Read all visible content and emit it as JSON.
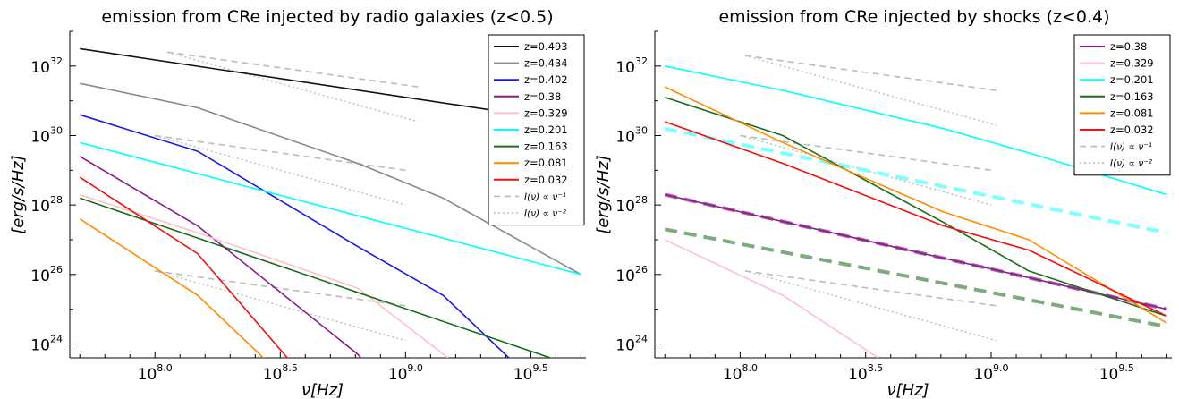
{
  "chart_data": [
    {
      "type": "line",
      "title": "emission from CRe injected by radio galaxies (z<0.5)",
      "xlabel": "ν[Hz]",
      "ylabel": "[erg/s/Hz]",
      "xscale": "log",
      "yscale": "log",
      "xlim_log10": [
        7.66,
        9.72
      ],
      "ylim_log10": [
        23.6,
        33.0
      ],
      "xticks": [
        {
          "log10": 8.0,
          "base": "10",
          "exp": "8.0"
        },
        {
          "log10": 8.5,
          "base": "10",
          "exp": "8.5"
        },
        {
          "log10": 9.0,
          "base": "10",
          "exp": "9.0"
        },
        {
          "log10": 9.5,
          "base": "10",
          "exp": "9.5"
        }
      ],
      "yticks": [
        {
          "log10": 24,
          "base": "10",
          "exp": "24"
        },
        {
          "log10": 26,
          "base": "10",
          "exp": "26"
        },
        {
          "log10": 28,
          "base": "10",
          "exp": "28"
        },
        {
          "log10": 30,
          "base": "10",
          "exp": "30"
        },
        {
          "log10": 32,
          "base": "10",
          "exp": "32"
        }
      ],
      "legend_position": "top-right",
      "series": [
        {
          "name": "z=0.493",
          "color": "#111111",
          "style": "solid",
          "points": [
            [
              7.7,
              32.5
            ],
            [
              9.56,
              30.5
            ]
          ]
        },
        {
          "name": "z=0.434",
          "color": "#888888",
          "style": "solid",
          "points": [
            [
              7.7,
              31.5
            ],
            [
              8.17,
              30.8
            ],
            [
              8.81,
              29.2
            ],
            [
              9.15,
              28.2
            ],
            [
              9.7,
              26.0
            ]
          ]
        },
        {
          "name": "z=0.402",
          "color": "#1a1ae6",
          "style": "solid",
          "points": [
            [
              7.7,
              30.6
            ],
            [
              8.17,
              29.55
            ],
            [
              8.81,
              26.8
            ],
            [
              9.15,
              25.4
            ],
            [
              9.5,
              23.0
            ]
          ]
        },
        {
          "name": "z=0.38",
          "color": "#8b1a8b",
          "style": "solid",
          "points": [
            [
              7.7,
              29.4
            ],
            [
              8.17,
              27.4
            ],
            [
              8.81,
              23.7
            ],
            [
              8.95,
              22.5
            ]
          ]
        },
        {
          "name": "z=0.329",
          "color": "#ffc0cb",
          "style": "solid",
          "points": [
            [
              7.7,
              28.3
            ],
            [
              8.17,
              27.2
            ],
            [
              8.81,
              25.6
            ],
            [
              9.17,
              23.6
            ]
          ]
        },
        {
          "name": "z=0.201",
          "color": "#00ffff",
          "style": "solid",
          "points": [
            [
              7.7,
              29.8
            ],
            [
              9.7,
              26.0
            ]
          ]
        },
        {
          "name": "z=0.163",
          "color": "#1b6b1b",
          "style": "solid",
          "points": [
            [
              7.7,
              28.2
            ],
            [
              9.7,
              23.3
            ]
          ]
        },
        {
          "name": "z=0.081",
          "color": "#ff8c00",
          "style": "solid",
          "points": [
            [
              7.7,
              27.6
            ],
            [
              8.17,
              25.4
            ],
            [
              8.55,
              22.8
            ]
          ]
        },
        {
          "name": "z=0.032",
          "color": "#ee1111",
          "style": "solid",
          "points": [
            [
              7.7,
              28.8
            ],
            [
              8.17,
              26.6
            ],
            [
              8.6,
              23.0
            ]
          ]
        }
      ],
      "reference_lines": [
        {
          "name": "I(ν) ∝ ν^-1",
          "color": "#bbbbbb",
          "style": "dashed",
          "points": [
            [
              8.05,
              32.4
            ],
            [
              9.05,
              31.4
            ]
          ]
        },
        {
          "name": "I(ν) ∝ ν^-2",
          "color": "#bbbbbb",
          "style": "dotted",
          "points": [
            [
              8.05,
              32.4
            ],
            [
              9.05,
              30.4
            ]
          ]
        },
        {
          "name": "I(ν) ∝ ν^-1",
          "color": "#bbbbbb",
          "style": "dashed",
          "points": [
            [
              8.0,
              30.0
            ],
            [
              9.0,
              29.0
            ]
          ]
        },
        {
          "name": "I(ν) ∝ ν^-2",
          "color": "#bbbbbb",
          "style": "dotted",
          "points": [
            [
              8.0,
              30.0
            ],
            [
              9.0,
              28.0
            ]
          ]
        },
        {
          "name": "I(ν) ∝ ν^-1",
          "color": "#bbbbbb",
          "style": "dashed",
          "points": [
            [
              8.0,
              26.1
            ],
            [
              9.0,
              25.1
            ]
          ]
        },
        {
          "name": "I(ν) ∝ ν^-2",
          "color": "#bbbbbb",
          "style": "dotted",
          "points": [
            [
              8.0,
              26.1
            ],
            [
              9.0,
              24.1
            ]
          ]
        }
      ],
      "legend": [
        {
          "label": "z=0.493",
          "color": "#111111",
          "style": "solid",
          "math": false
        },
        {
          "label": "z=0.434",
          "color": "#888888",
          "style": "solid",
          "math": false
        },
        {
          "label": "z=0.402",
          "color": "#1a1ae6",
          "style": "solid",
          "math": false
        },
        {
          "label": "z=0.38",
          "color": "#8b1a8b",
          "style": "solid",
          "math": false
        },
        {
          "label": "z=0.329",
          "color": "#ffc0cb",
          "style": "solid",
          "math": false
        },
        {
          "label": "z=0.201",
          "color": "#00ffff",
          "style": "solid",
          "math": false
        },
        {
          "label": "z=0.163",
          "color": "#1b6b1b",
          "style": "solid",
          "math": false
        },
        {
          "label": "z=0.081",
          "color": "#ff8c00",
          "style": "solid",
          "math": false
        },
        {
          "label": "z=0.032",
          "color": "#ee1111",
          "style": "solid",
          "math": false
        },
        {
          "label": "I(ν) ∝ ν⁻¹",
          "color": "#bbbbbb",
          "style": "dashed",
          "math": true
        },
        {
          "label": "I(ν) ∝ ν⁻²",
          "color": "#bbbbbb",
          "style": "dotted",
          "math": true
        }
      ]
    },
    {
      "type": "line",
      "title": "emission from CRe injected by shocks (z<0.4)",
      "xlabel": "ν[Hz]",
      "ylabel": "[erg/s/Hz]",
      "xscale": "log",
      "yscale": "log",
      "xlim_log10": [
        7.66,
        9.72
      ],
      "ylim_log10": [
        23.6,
        33.0
      ],
      "xticks": [
        {
          "log10": 8.0,
          "base": "10",
          "exp": "8.0"
        },
        {
          "log10": 8.5,
          "base": "10",
          "exp": "8.5"
        },
        {
          "log10": 9.0,
          "base": "10",
          "exp": "9.0"
        },
        {
          "log10": 9.5,
          "base": "10",
          "exp": "9.5"
        }
      ],
      "yticks": [
        {
          "log10": 24,
          "base": "10",
          "exp": "24"
        },
        {
          "log10": 26,
          "base": "10",
          "exp": "26"
        },
        {
          "log10": 28,
          "base": "10",
          "exp": "28"
        },
        {
          "log10": 30,
          "base": "10",
          "exp": "30"
        },
        {
          "log10": 32,
          "base": "10",
          "exp": "32"
        }
      ],
      "legend_position": "top-right",
      "series": [
        {
          "name": "",
          "color": "#80ffff",
          "style": "thick-dashed",
          "points": [
            [
              7.7,
              30.2
            ],
            [
              9.7,
              27.2
            ]
          ]
        },
        {
          "name": "",
          "color": "#7faa7f",
          "style": "thick-dashed",
          "points": [
            [
              7.7,
              27.3
            ],
            [
              9.7,
              24.5
            ]
          ]
        },
        {
          "name": "",
          "color": "#aa66aa",
          "style": "thick-dashed",
          "points": [
            [
              7.7,
              28.3
            ],
            [
              9.7,
              25.0
            ]
          ]
        },
        {
          "name": "z=0.38",
          "color": "#8b1a8b",
          "style": "solid",
          "points": [
            [
              7.7,
              28.3
            ],
            [
              9.7,
              25.0
            ]
          ]
        },
        {
          "name": "z=0.329",
          "color": "#ffc0cb",
          "style": "solid",
          "points": [
            [
              7.7,
              27.0
            ],
            [
              8.17,
              25.4
            ],
            [
              8.55,
              23.6
            ]
          ]
        },
        {
          "name": "z=0.201",
          "color": "#00ffff",
          "style": "solid",
          "points": [
            [
              7.7,
              32.0
            ],
            [
              8.17,
              31.3
            ],
            [
              8.81,
              30.2
            ],
            [
              9.15,
              29.5
            ],
            [
              9.7,
              28.3
            ]
          ]
        },
        {
          "name": "z=0.163",
          "color": "#1b6b1b",
          "style": "solid",
          "points": [
            [
              7.7,
              31.1
            ],
            [
              8.17,
              30.0
            ],
            [
              8.81,
              27.5
            ],
            [
              9.15,
              26.1
            ],
            [
              9.7,
              24.8
            ]
          ]
        },
        {
          "name": "z=0.081",
          "color": "#ff8c00",
          "style": "solid",
          "points": [
            [
              7.7,
              31.4
            ],
            [
              8.17,
              29.8
            ],
            [
              8.81,
              27.8
            ],
            [
              9.15,
              27.0
            ],
            [
              9.7,
              24.6
            ]
          ]
        },
        {
          "name": "z=0.032",
          "color": "#ee1111",
          "style": "solid",
          "points": [
            [
              7.7,
              30.4
            ],
            [
              8.17,
              29.2
            ],
            [
              8.81,
              27.4
            ],
            [
              9.15,
              26.7
            ],
            [
              9.7,
              24.8
            ]
          ]
        }
      ],
      "reference_lines": [
        {
          "name": "I(ν) ∝ ν^-1",
          "color": "#bbbbbb",
          "style": "dashed",
          "points": [
            [
              8.02,
              32.3
            ],
            [
              9.02,
              31.3
            ]
          ]
        },
        {
          "name": "I(ν) ∝ ν^-2",
          "color": "#bbbbbb",
          "style": "dotted",
          "points": [
            [
              8.02,
              32.3
            ],
            [
              9.02,
              30.3
            ]
          ]
        },
        {
          "name": "I(ν) ∝ ν^-1",
          "color": "#bbbbbb",
          "style": "dashed",
          "points": [
            [
              8.0,
              30.0
            ],
            [
              9.0,
              29.0
            ]
          ]
        },
        {
          "name": "I(ν) ∝ ν^-2",
          "color": "#bbbbbb",
          "style": "dotted",
          "points": [
            [
              8.0,
              30.0
            ],
            [
              9.0,
              28.0
            ]
          ]
        },
        {
          "name": "I(ν) ∝ ν^-1",
          "color": "#bbbbbb",
          "style": "dashed",
          "points": [
            [
              8.02,
              26.1
            ],
            [
              9.02,
              25.1
            ]
          ]
        },
        {
          "name": "I(ν) ∝ ν^-2",
          "color": "#bbbbbb",
          "style": "dotted",
          "points": [
            [
              8.02,
              26.1
            ],
            [
              9.02,
              24.1
            ]
          ]
        }
      ],
      "legend": [
        {
          "label": "z=0.38",
          "color": "#8b1a8b",
          "style": "solid",
          "math": false
        },
        {
          "label": "z=0.329",
          "color": "#ffc0cb",
          "style": "solid",
          "math": false
        },
        {
          "label": "z=0.201",
          "color": "#00ffff",
          "style": "solid",
          "math": false
        },
        {
          "label": "z=0.163",
          "color": "#1b6b1b",
          "style": "solid",
          "math": false
        },
        {
          "label": "z=0.081",
          "color": "#ff8c00",
          "style": "solid",
          "math": false
        },
        {
          "label": "z=0.032",
          "color": "#ee1111",
          "style": "solid",
          "math": false
        },
        {
          "label": "I(ν) ∝ ν⁻¹",
          "color": "#bbbbbb",
          "style": "dashed",
          "math": true
        },
        {
          "label": "I(ν) ∝ ν⁻²",
          "color": "#bbbbbb",
          "style": "dotted",
          "math": true
        }
      ]
    }
  ]
}
